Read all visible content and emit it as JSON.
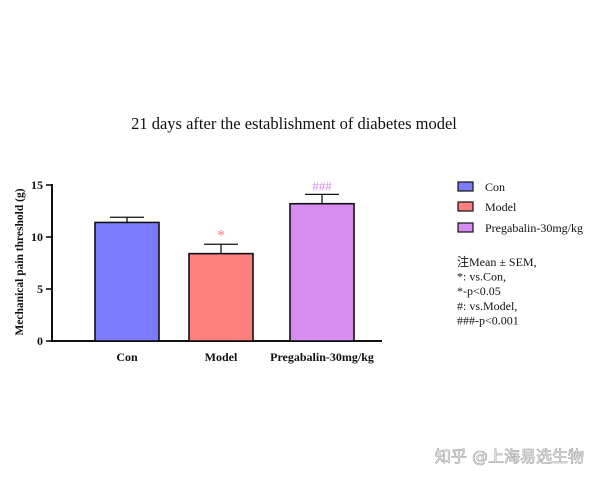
{
  "chart_data": {
    "type": "bar",
    "title": "21 days after the establishment of diabetes model",
    "ylabel": "Mechanical pain threshold (g)",
    "xlabel": "",
    "ylim": [
      0,
      15
    ],
    "yticks": [
      0,
      5,
      10,
      15
    ],
    "grid": false,
    "legend_position": "right",
    "categories": [
      "Con",
      "Model",
      "Pregabalin-30mg/kg"
    ],
    "values": [
      11.4,
      8.4,
      13.2
    ],
    "errors": [
      0.5,
      0.9,
      0.9
    ],
    "colors": [
      "#7b7bff",
      "#ff7f7f",
      "#d88cf0"
    ],
    "annotations": [
      {
        "category_index": 1,
        "text": "*",
        "color": "#ff7f7f"
      },
      {
        "category_index": 2,
        "text": "###",
        "color": "#d88cf0"
      }
    ],
    "legend": [
      {
        "label": "Con",
        "color": "#7b7bff"
      },
      {
        "label": "Model",
        "color": "#ff7f7f"
      },
      {
        "label": "Pregabalin-30mg/kg",
        "color": "#d88cf0"
      }
    ],
    "notes": [
      "注Mean ± SEM,",
      "*: vs.Con,",
      "*-p<0.05",
      "#: vs.Model,",
      "###-p<0.001"
    ]
  },
  "watermark": "知乎 @上海易选生物"
}
